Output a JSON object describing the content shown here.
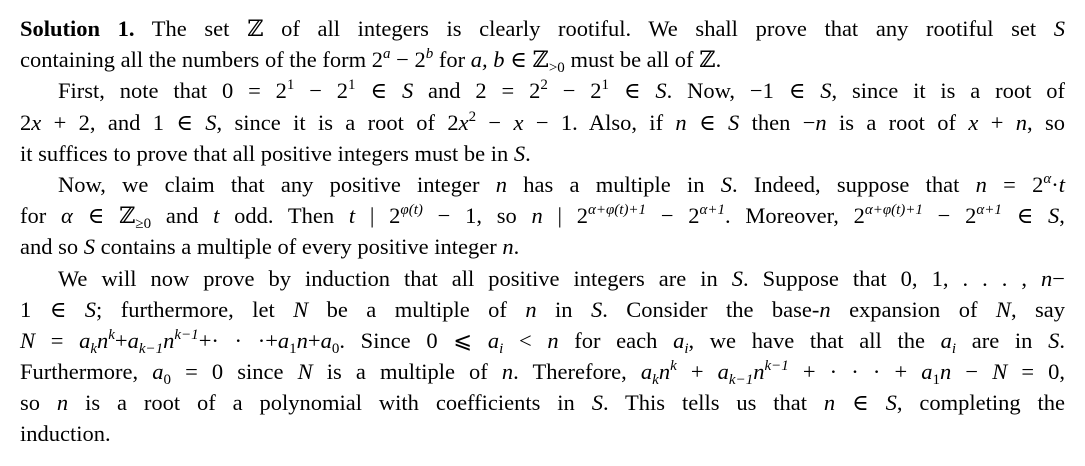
{
  "lines": [
    {
      "indent": false,
      "last": false,
      "segs": [
        [
          "b",
          "Solution 1."
        ],
        [
          "r",
          "  The set ℤ of all integers is clearly rootiful. We shall prove that any rootiful set "
        ],
        [
          "i",
          "S"
        ]
      ]
    },
    {
      "indent": false,
      "last": true,
      "segs": [
        [
          "r",
          "containing all the numbers of the form 2"
        ],
        [
          "supi",
          "a"
        ],
        [
          "r",
          " − 2"
        ],
        [
          "supi",
          "b"
        ],
        [
          "r",
          " for "
        ],
        [
          "i",
          "a, b"
        ],
        [
          "r",
          " ∈ ℤ"
        ],
        [
          "sub",
          ">0"
        ],
        [
          "r",
          " must be all of ℤ."
        ]
      ]
    },
    {
      "indent": true,
      "last": false,
      "segs": [
        [
          "r",
          "First, note that 0 = 2"
        ],
        [
          "sup",
          "1"
        ],
        [
          "r",
          " − 2"
        ],
        [
          "sup",
          "1"
        ],
        [
          "r",
          " ∈ "
        ],
        [
          "i",
          "S"
        ],
        [
          "r",
          " and 2 = 2"
        ],
        [
          "sup",
          "2"
        ],
        [
          "r",
          " − 2"
        ],
        [
          "sup",
          "1"
        ],
        [
          "r",
          " ∈ "
        ],
        [
          "i",
          "S"
        ],
        [
          "r",
          ". Now, −1 ∈ "
        ],
        [
          "i",
          "S"
        ],
        [
          "r",
          ", since it is a root of"
        ]
      ]
    },
    {
      "indent": false,
      "last": false,
      "segs": [
        [
          "r",
          "2"
        ],
        [
          "i",
          "x"
        ],
        [
          "r",
          " + 2, and 1 ∈ "
        ],
        [
          "i",
          "S"
        ],
        [
          "r",
          ", since it is a root of 2"
        ],
        [
          "i",
          "x"
        ],
        [
          "sup",
          "2"
        ],
        [
          "r",
          " − "
        ],
        [
          "i",
          "x"
        ],
        [
          "r",
          " − 1. Also, if "
        ],
        [
          "i",
          "n"
        ],
        [
          "r",
          " ∈ "
        ],
        [
          "i",
          "S"
        ],
        [
          "r",
          " then −"
        ],
        [
          "i",
          "n"
        ],
        [
          "r",
          " is a root of "
        ],
        [
          "i",
          "x"
        ],
        [
          "r",
          " + "
        ],
        [
          "i",
          "n"
        ],
        [
          "r",
          ", so"
        ]
      ]
    },
    {
      "indent": false,
      "last": true,
      "segs": [
        [
          "r",
          "it suffices to prove that all positive integers must be in "
        ],
        [
          "i",
          "S"
        ],
        [
          "r",
          "."
        ]
      ]
    },
    {
      "indent": true,
      "last": false,
      "segs": [
        [
          "r",
          "Now, we claim that any positive integer "
        ],
        [
          "i",
          "n"
        ],
        [
          "r",
          " has a multiple in "
        ],
        [
          "i",
          "S"
        ],
        [
          "r",
          ". Indeed, suppose that "
        ],
        [
          "i",
          "n"
        ],
        [
          "r",
          " = 2"
        ],
        [
          "supi",
          "α"
        ],
        [
          "r",
          "·"
        ],
        [
          "i",
          "t"
        ]
      ]
    },
    {
      "indent": false,
      "last": false,
      "segs": [
        [
          "r",
          "for "
        ],
        [
          "i",
          "α"
        ],
        [
          "r",
          " ∈ ℤ"
        ],
        [
          "sub",
          "≥0"
        ],
        [
          "r",
          " and "
        ],
        [
          "i",
          "t"
        ],
        [
          "r",
          " odd. Then "
        ],
        [
          "i",
          "t"
        ],
        [
          "r",
          " | 2"
        ],
        [
          "supi",
          "φ(t)"
        ],
        [
          "r",
          " − 1, so "
        ],
        [
          "i",
          "n"
        ],
        [
          "r",
          " | 2"
        ],
        [
          "supi",
          "α+φ(t)+1"
        ],
        [
          "r",
          " − 2"
        ],
        [
          "supi",
          "α+1"
        ],
        [
          "r",
          ". Moreover, 2"
        ],
        [
          "supi",
          "α+φ(t)+1"
        ],
        [
          "r",
          " − 2"
        ],
        [
          "supi",
          "α+1"
        ],
        [
          "r",
          " ∈ "
        ],
        [
          "i",
          "S"
        ],
        [
          "r",
          ","
        ]
      ]
    },
    {
      "indent": false,
      "last": true,
      "segs": [
        [
          "r",
          "and so "
        ],
        [
          "i",
          "S"
        ],
        [
          "r",
          " contains a multiple of every positive integer "
        ],
        [
          "i",
          "n"
        ],
        [
          "r",
          "."
        ]
      ]
    },
    {
      "indent": true,
      "last": false,
      "segs": [
        [
          "r",
          "We will now prove by induction that all positive integers are in "
        ],
        [
          "i",
          "S"
        ],
        [
          "r",
          ". Suppose that 0, 1, . . . , "
        ],
        [
          "i",
          "n"
        ],
        [
          "r",
          "−"
        ]
      ]
    },
    {
      "indent": false,
      "last": false,
      "segs": [
        [
          "r",
          "1 ∈ "
        ],
        [
          "i",
          "S"
        ],
        [
          "r",
          "; furthermore, let "
        ],
        [
          "i",
          "N"
        ],
        [
          "r",
          " be a multiple of "
        ],
        [
          "i",
          "n"
        ],
        [
          "r",
          " in "
        ],
        [
          "i",
          "S"
        ],
        [
          "r",
          ". Consider the base-"
        ],
        [
          "i",
          "n"
        ],
        [
          "r",
          " expansion of "
        ],
        [
          "i",
          "N"
        ],
        [
          "r",
          ", say"
        ]
      ]
    },
    {
      "indent": false,
      "last": false,
      "segs": [
        [
          "i",
          "N"
        ],
        [
          "r",
          " = "
        ],
        [
          "i",
          "a"
        ],
        [
          "subi",
          "k"
        ],
        [
          "i",
          "n"
        ],
        [
          "supi",
          "k"
        ],
        [
          "r",
          "+"
        ],
        [
          "i",
          "a"
        ],
        [
          "subi",
          "k−1"
        ],
        [
          "i",
          "n"
        ],
        [
          "supi",
          "k−1"
        ],
        [
          "r",
          "+· · ·+"
        ],
        [
          "i",
          "a"
        ],
        [
          "sub",
          "1"
        ],
        [
          "i",
          "n"
        ],
        [
          "r",
          "+"
        ],
        [
          "i",
          "a"
        ],
        [
          "sub",
          "0"
        ],
        [
          "r",
          ". Since 0 ⩽ "
        ],
        [
          "i",
          "a"
        ],
        [
          "subi",
          "i"
        ],
        [
          "r",
          " < "
        ],
        [
          "i",
          "n"
        ],
        [
          "r",
          " for each "
        ],
        [
          "i",
          "a"
        ],
        [
          "subi",
          "i"
        ],
        [
          "r",
          ", we have that all the "
        ],
        [
          "i",
          "a"
        ],
        [
          "subi",
          "i"
        ],
        [
          "r",
          " are in "
        ],
        [
          "i",
          "S"
        ],
        [
          "r",
          "."
        ]
      ]
    },
    {
      "indent": false,
      "last": false,
      "segs": [
        [
          "r",
          "Furthermore, "
        ],
        [
          "i",
          "a"
        ],
        [
          "sub",
          "0"
        ],
        [
          "r",
          " = 0 since "
        ],
        [
          "i",
          "N"
        ],
        [
          "r",
          " is a multiple of "
        ],
        [
          "i",
          "n"
        ],
        [
          "r",
          ". Therefore, "
        ],
        [
          "i",
          "a"
        ],
        [
          "subi",
          "k"
        ],
        [
          "i",
          "n"
        ],
        [
          "supi",
          "k"
        ],
        [
          "r",
          " + "
        ],
        [
          "i",
          "a"
        ],
        [
          "subi",
          "k−1"
        ],
        [
          "i",
          "n"
        ],
        [
          "supi",
          "k−1"
        ],
        [
          "r",
          " + · · · + "
        ],
        [
          "i",
          "a"
        ],
        [
          "sub",
          "1"
        ],
        [
          "i",
          "n"
        ],
        [
          "r",
          " − "
        ],
        [
          "i",
          "N"
        ],
        [
          "r",
          " = 0,"
        ]
      ]
    },
    {
      "indent": false,
      "last": false,
      "segs": [
        [
          "r",
          "so "
        ],
        [
          "i",
          "n"
        ],
        [
          "r",
          " is a root of a polynomial with coefficients in "
        ],
        [
          "i",
          "S"
        ],
        [
          "r",
          ". This tells us that "
        ],
        [
          "i",
          "n"
        ],
        [
          "r",
          " ∈ "
        ],
        [
          "i",
          "S"
        ],
        [
          "r",
          ", completing the"
        ]
      ]
    },
    {
      "indent": false,
      "last": true,
      "segs": [
        [
          "r",
          "induction."
        ]
      ]
    }
  ]
}
